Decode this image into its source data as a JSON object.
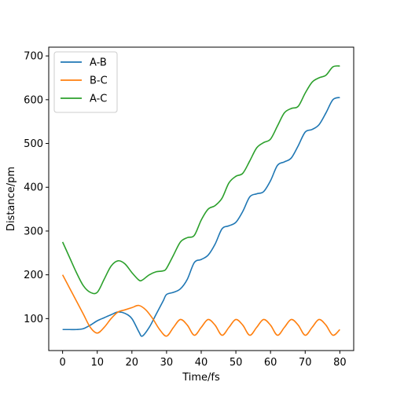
{
  "chart_data": {
    "type": "line",
    "xlabel": "Time/fs",
    "ylabel": "Distance/pm",
    "xlim": [
      -4,
      84
    ],
    "ylim": [
      27,
      720
    ],
    "xticks": [
      0,
      10,
      20,
      30,
      40,
      50,
      60,
      70,
      80
    ],
    "yticks": [
      100,
      200,
      300,
      400,
      500,
      600,
      700
    ],
    "grid": false,
    "legend_position": "top-left",
    "series": [
      {
        "name": "A-B",
        "color": "#1f77b4",
        "x": [
          0,
          2,
          4,
          6,
          8,
          10,
          12,
          14,
          16,
          18,
          20,
          22,
          23,
          25,
          27,
          29,
          30,
          32,
          34,
          36,
          38,
          40,
          42,
          44,
          46,
          48,
          50,
          52,
          54,
          56,
          58,
          60,
          62,
          64,
          66,
          68,
          70,
          72,
          74,
          76,
          78,
          80
        ],
        "y": [
          75,
          75,
          75,
          77,
          85,
          95,
          102,
          109,
          115,
          112,
          100,
          70,
          60,
          80,
          110,
          140,
          155,
          160,
          168,
          190,
          228,
          235,
          245,
          270,
          305,
          312,
          320,
          345,
          378,
          385,
          390,
          415,
          450,
          458,
          467,
          495,
          526,
          532,
          543,
          570,
          600,
          605
        ]
      },
      {
        "name": "B-C",
        "color": "#ff7f0e",
        "x": [
          0,
          2,
          4,
          6,
          8,
          10,
          12,
          14,
          16,
          18,
          20,
          22,
          24,
          26,
          28,
          30,
          32,
          34,
          36,
          38,
          40,
          42,
          44,
          46,
          48,
          50,
          52,
          54,
          56,
          58,
          60,
          62,
          64,
          66,
          68,
          70,
          72,
          74,
          76,
          78,
          80
        ],
        "y": [
          200,
          170,
          140,
          110,
          80,
          67,
          80,
          100,
          115,
          120,
          125,
          130,
          120,
          100,
          75,
          60,
          80,
          98,
          85,
          62,
          80,
          98,
          85,
          62,
          80,
          98,
          85,
          62,
          80,
          98,
          85,
          62,
          80,
          98,
          85,
          62,
          80,
          98,
          85,
          62,
          75
        ]
      },
      {
        "name": "A-C",
        "color": "#2ca02c",
        "x": [
          0,
          2,
          4,
          6,
          8,
          10,
          12,
          14,
          16,
          18,
          20,
          22,
          23,
          25,
          27,
          29,
          30,
          32,
          34,
          36,
          38,
          40,
          42,
          44,
          46,
          48,
          50,
          52,
          54,
          56,
          58,
          60,
          62,
          64,
          66,
          68,
          70,
          72,
          74,
          76,
          78,
          80
        ],
        "y": [
          275,
          240,
          205,
          175,
          160,
          160,
          190,
          220,
          232,
          225,
          205,
          188,
          188,
          200,
          207,
          209,
          215,
          245,
          275,
          285,
          290,
          325,
          350,
          358,
          375,
          410,
          425,
          432,
          460,
          490,
          502,
          510,
          540,
          570,
          580,
          585,
          615,
          640,
          650,
          656,
          675,
          677
        ]
      }
    ]
  }
}
